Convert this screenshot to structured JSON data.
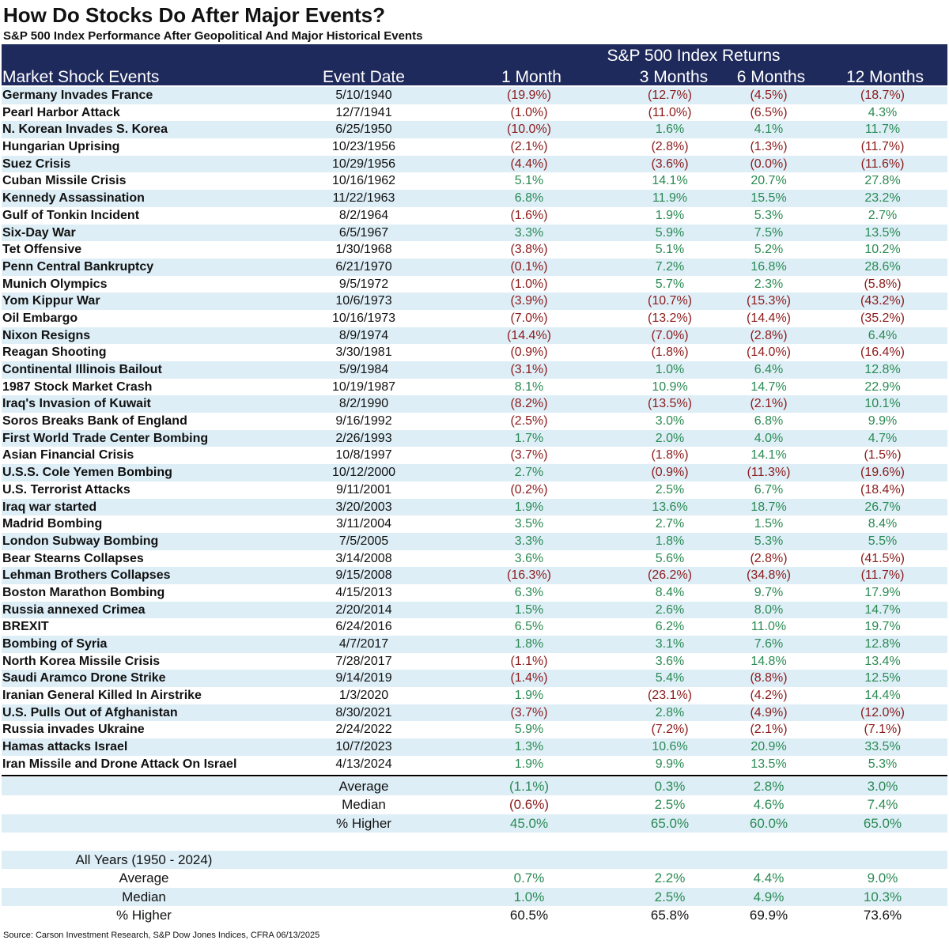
{
  "title": "How Do Stocks Do After Major Events?",
  "subtitle": "S&P 500 Index Performance After Geopolitical And Major Historical Events",
  "header": {
    "group_label": "S&P 500 Index Returns",
    "columns": [
      "Market Shock Events",
      "Event Date",
      "1 Month",
      "3 Months",
      "6 Months",
      "12 Months"
    ]
  },
  "chart_data": {
    "type": "table",
    "columns": [
      "Market Shock Events",
      "Event Date",
      "1 Month",
      "3 Months",
      "6 Months",
      "12 Months"
    ],
    "rows": [
      [
        "Germany Invades France",
        "5/10/1940",
        "(19.9%)",
        "(12.7%)",
        "(4.5%)",
        "(18.7%)"
      ],
      [
        "Pearl Harbor Attack",
        "12/7/1941",
        "(1.0%)",
        "(11.0%)",
        "(6.5%)",
        "4.3%"
      ],
      [
        "N. Korean Invades S. Korea",
        "6/25/1950",
        "(10.0%)",
        "1.6%",
        "4.1%",
        "11.7%"
      ],
      [
        "Hungarian Uprising",
        "10/23/1956",
        "(2.1%)",
        "(2.8%)",
        "(1.3%)",
        "(11.7%)"
      ],
      [
        "Suez Crisis",
        "10/29/1956",
        "(4.4%)",
        "(3.6%)",
        "(0.0%)",
        "(11.6%)"
      ],
      [
        "Cuban Missile Crisis",
        "10/16/1962",
        "5.1%",
        "14.1%",
        "20.7%",
        "27.8%"
      ],
      [
        "Kennedy Assassination",
        "11/22/1963",
        "6.8%",
        "11.9%",
        "15.5%",
        "23.2%"
      ],
      [
        "Gulf of Tonkin Incident",
        "8/2/1964",
        "(1.6%)",
        "1.9%",
        "5.3%",
        "2.7%"
      ],
      [
        "Six-Day War",
        "6/5/1967",
        "3.3%",
        "5.9%",
        "7.5%",
        "13.5%"
      ],
      [
        "Tet Offensive",
        "1/30/1968",
        "(3.8%)",
        "5.1%",
        "5.2%",
        "10.2%"
      ],
      [
        "Penn Central Bankruptcy",
        "6/21/1970",
        "(0.1%)",
        "7.2%",
        "16.8%",
        "28.6%"
      ],
      [
        "Munich Olympics",
        "9/5/1972",
        "(1.0%)",
        "5.7%",
        "2.3%",
        "(5.8%)"
      ],
      [
        "Yom Kippur War",
        "10/6/1973",
        "(3.9%)",
        "(10.7%)",
        "(15.3%)",
        "(43.2%)"
      ],
      [
        "Oil Embargo",
        "10/16/1973",
        "(7.0%)",
        "(13.2%)",
        "(14.4%)",
        "(35.2%)"
      ],
      [
        "Nixon Resigns",
        "8/9/1974",
        "(14.4%)",
        "(7.0%)",
        "(2.8%)",
        "6.4%"
      ],
      [
        "Reagan Shooting",
        "3/30/1981",
        "(0.9%)",
        "(1.8%)",
        "(14.0%)",
        "(16.4%)"
      ],
      [
        "Continental Illinois Bailout",
        "5/9/1984",
        "(3.1%)",
        "1.0%",
        "6.4%",
        "12.8%"
      ],
      [
        "1987 Stock Market Crash",
        "10/19/1987",
        "8.1%",
        "10.9%",
        "14.7%",
        "22.9%"
      ],
      [
        "Iraq's Invasion of Kuwait",
        "8/2/1990",
        "(8.2%)",
        "(13.5%)",
        "(2.1%)",
        "10.1%"
      ],
      [
        "Soros Breaks Bank of England",
        "9/16/1992",
        "(2.5%)",
        "3.0%",
        "6.8%",
        "9.9%"
      ],
      [
        "First World Trade Center Bombing",
        "2/26/1993",
        "1.7%",
        "2.0%",
        "4.0%",
        "4.7%"
      ],
      [
        "Asian Financial Crisis",
        "10/8/1997",
        "(3.7%)",
        "(1.8%)",
        "14.1%",
        "(1.5%)"
      ],
      [
        "U.S.S. Cole Yemen Bombing",
        "10/12/2000",
        "2.7%",
        "(0.9%)",
        "(11.3%)",
        "(19.6%)"
      ],
      [
        "U.S. Terrorist Attacks",
        "9/11/2001",
        "(0.2%)",
        "2.5%",
        "6.7%",
        "(18.4%)"
      ],
      [
        "Iraq war started",
        "3/20/2003",
        "1.9%",
        "13.6%",
        "18.7%",
        "26.7%"
      ],
      [
        "Madrid Bombing",
        "3/11/2004",
        "3.5%",
        "2.7%",
        "1.5%",
        "8.4%"
      ],
      [
        "London Subway Bombing",
        "7/5/2005",
        "3.3%",
        "1.8%",
        "5.3%",
        "5.5%"
      ],
      [
        "Bear Stearns Collapses",
        "3/14/2008",
        "3.6%",
        "5.6%",
        "(2.8%)",
        "(41.5%)"
      ],
      [
        "Lehman Brothers Collapses",
        "9/15/2008",
        "(16.3%)",
        "(26.2%)",
        "(34.8%)",
        "(11.7%)"
      ],
      [
        "Boston Marathon Bombing",
        "4/15/2013",
        "6.3%",
        "8.4%",
        "9.7%",
        "17.9%"
      ],
      [
        "Russia annexed Crimea",
        "2/20/2014",
        "1.5%",
        "2.6%",
        "8.0%",
        "14.7%"
      ],
      [
        "BREXIT",
        "6/24/2016",
        "6.5%",
        "6.2%",
        "11.0%",
        "19.7%"
      ],
      [
        "Bombing of Syria",
        "4/7/2017",
        "1.8%",
        "3.1%",
        "7.6%",
        "12.8%"
      ],
      [
        "North Korea Missile Crisis",
        "7/28/2017",
        "(1.1%)",
        "3.6%",
        "14.8%",
        "13.4%"
      ],
      [
        "Saudi Aramco Drone Strike",
        "9/14/2019",
        "(1.4%)",
        "5.4%",
        "(8.8%)",
        "12.5%"
      ],
      [
        "Iranian General Killed In Airstrike",
        "1/3/2020",
        "1.9%",
        "(23.1%)",
        "(4.2%)",
        "14.4%"
      ],
      [
        "U.S. Pulls Out of Afghanistan",
        "8/30/2021",
        "(3.7%)",
        "2.8%",
        "(4.9%)",
        "(12.0%)"
      ],
      [
        "Russia invades Ukraine",
        "2/24/2022",
        "5.9%",
        "(7.2%)",
        "(2.1%)",
        "(7.1%)"
      ],
      [
        "Hamas attacks Israel",
        "10/7/2023",
        "1.3%",
        "10.6%",
        "20.9%",
        "33.5%"
      ],
      [
        "Iran Missile and Drone Attack On Israel",
        "4/13/2024",
        "1.9%",
        "9.9%",
        "13.5%",
        "5.3%"
      ]
    ]
  },
  "summary": [
    {
      "label": "Average",
      "values": [
        "(1.1%)",
        "0.3%",
        "2.8%",
        "3.0%"
      ]
    },
    {
      "label": "Median",
      "values": [
        "(0.6%)",
        "2.5%",
        "4.6%",
        "7.4%"
      ]
    },
    {
      "label": "% Higher",
      "values": [
        "45.0%",
        "65.0%",
        "60.0%",
        "65.0%"
      ]
    }
  ],
  "all_years": {
    "label": "All Years (1950 - 2024)",
    "rows": [
      {
        "label": "Average",
        "values": [
          "0.7%",
          "2.2%",
          "4.4%",
          "9.0%"
        ]
      },
      {
        "label": "Median",
        "values": [
          "1.0%",
          "2.5%",
          "4.9%",
          "10.3%"
        ]
      },
      {
        "label": "% Higher",
        "values": [
          "60.5%",
          "65.8%",
          "69.9%",
          "73.6%"
        ]
      }
    ]
  },
  "colors": {
    "header_bg": "#1f2a5c",
    "stripe": "#ddeef7",
    "positive": "#2a8a52",
    "negative": "#8b1a1a"
  },
  "source": "Source: Carson Investment Research, S&P Dow Jones Indices, CFRA 06/13/2025"
}
